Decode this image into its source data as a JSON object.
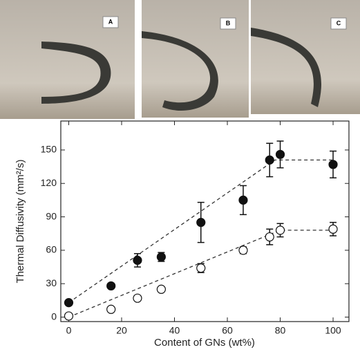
{
  "panels": [
    {
      "label": "A"
    },
    {
      "label": "B"
    },
    {
      "label": "C"
    }
  ],
  "chart_data": {
    "type": "scatter",
    "x_label": "Content of GNs (wt%)",
    "y_label": "Thermal Diffusivity (mm²/s)",
    "xlim": [
      -3,
      106
    ],
    "ylim": [
      -4,
      176
    ],
    "xticks": [
      0,
      20,
      40,
      60,
      80,
      100
    ],
    "yticks": [
      0,
      30,
      60,
      90,
      120,
      150
    ],
    "series": [
      {
        "marker": "filled",
        "color": "#111111",
        "x": [
          0,
          16,
          26,
          35,
          50,
          66,
          76,
          80,
          100
        ],
        "values": [
          13,
          28,
          51,
          54,
          85,
          105,
          141,
          146,
          137
        ],
        "errors": [
          null,
          null,
          6,
          4,
          18,
          13,
          15,
          12,
          12
        ]
      },
      {
        "marker": "open",
        "color": "#111111",
        "x": [
          0,
          16,
          26,
          35,
          50,
          66,
          76,
          80,
          100
        ],
        "values": [
          1,
          7,
          17,
          25,
          44,
          60,
          72,
          78,
          79
        ],
        "errors": [
          null,
          null,
          null,
          null,
          4,
          3,
          7,
          6,
          6
        ]
      }
    ],
    "trend_lines": [
      {
        "color": "#333333",
        "x": [
          0,
          78,
          100
        ],
        "values": [
          13,
          141,
          141
        ]
      },
      {
        "color": "#333333",
        "x": [
          0,
          80,
          100
        ],
        "values": [
          0,
          78,
          78
        ]
      }
    ]
  }
}
